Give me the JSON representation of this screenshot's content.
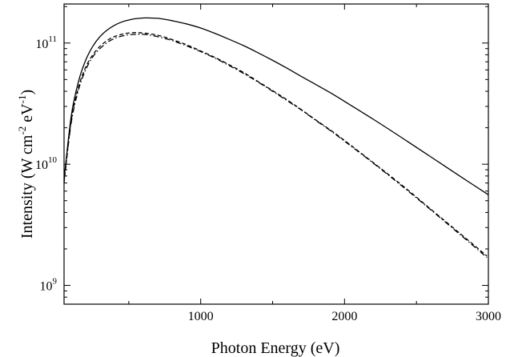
{
  "chart_data": {
    "type": "line",
    "xlabel": "Photon Energy (eV)",
    "ylabel": {
      "pre": "Intensity (W cm",
      "sup1": "-2",
      "mid": " eV",
      "sup2": "-1",
      "post": ")"
    },
    "xlim": [
      50,
      3000
    ],
    "ylim": [
      700000000.0,
      210000000000.0
    ],
    "yscale": "log",
    "grid": false,
    "x_ticks": [
      {
        "value": 1000,
        "label": "1000"
      },
      {
        "value": 2000,
        "label": "2000"
      },
      {
        "value": 3000,
        "label": "3000"
      }
    ],
    "y_ticks": [
      {
        "value": 1000000000.0,
        "base": "10",
        "exp": "9"
      },
      {
        "value": 10000000000.0,
        "base": "10",
        "exp": "10"
      },
      {
        "value": 100000000000.0,
        "base": "10",
        "exp": "11"
      }
    ],
    "series": [
      {
        "style": "solid",
        "color": "#000000",
        "x": [
          50,
          100,
          150,
          200,
          250,
          300,
          350,
          400,
          450,
          500,
          550,
          600,
          650,
          700,
          750,
          800,
          900,
          1000,
          1100,
          1200,
          1300,
          1400,
          1500,
          1600,
          1700,
          1800,
          1900,
          2000,
          2200,
          2400,
          2600,
          2800,
          3000
        ],
        "y": [
          7500000000.0,
          25000000000.0,
          48000000000.0,
          72000000000.0,
          94000000000.0,
          113000000000.0,
          128000000000.0,
          140000000000.0,
          149000000000.0,
          155000000000.0,
          159000000000.0,
          161000000000.0,
          161000000000.0,
          160000000000.0,
          157000000000.0,
          153000000000.0,
          144000000000.0,
          133000000000.0,
          120000000000.0,
          107000000000.0,
          95000000000.0,
          83000000000.0,
          72000000000.0,
          62000000000.0,
          53000000000.0,
          45500000000.0,
          39000000000.0,
          33000000000.0,
          23500000000.0,
          16500000000.0,
          11500000000.0,
          8000000000.0,
          5600000000.0
        ]
      },
      {
        "style": "dash-dot",
        "color": "#000000",
        "x": [
          50,
          100,
          150,
          200,
          250,
          300,
          350,
          400,
          450,
          500,
          550,
          600,
          650,
          700,
          750,
          800,
          900,
          1000,
          1100,
          1200,
          1300,
          1400,
          1500,
          1600,
          1700,
          1800,
          1900,
          2000,
          2200,
          2400,
          2600,
          2800,
          2990
        ],
        "y": [
          7200000000.0,
          22000000000.0,
          41000000000.0,
          60000000000.0,
          77000000000.0,
          90000000000.0,
          101000000000.0,
          109000000000.0,
          114000000000.0,
          117000000000.0,
          118000000000.0,
          118000000000.0,
          116000000000.0,
          113000000000.0,
          109000000000.0,
          105000000000.0,
          95000000000.0,
          85000000000.0,
          75000000000.0,
          65000000000.0,
          56000000000.0,
          47500000000.0,
          40000000000.0,
          33500000000.0,
          28000000000.0,
          23000000000.0,
          19000000000.0,
          15500000000.0,
          10200000000.0,
          6600000000.0,
          4200000000.0,
          2650000000.0,
          1700000000.0
        ]
      },
      {
        "style": "dash",
        "color": "#000000",
        "x": [
          50,
          100,
          150,
          200,
          250,
          300,
          350,
          400,
          450,
          500,
          550,
          600,
          650,
          700,
          750,
          800,
          900,
          1000,
          1100,
          1200,
          1300,
          1400,
          1500,
          1600,
          1700,
          1800,
          1900,
          2000,
          2200,
          2400,
          2600,
          2800,
          2990
        ],
        "y": [
          7000000000.0,
          23000000000.0,
          43000000000.0,
          63000000000.0,
          80000000000.0,
          94000000000.0,
          105000000000.0,
          113000000000.0,
          118000000000.0,
          121000000000.0,
          122000000000.0,
          121000000000.0,
          119000000000.0,
          116000000000.0,
          112000000000.0,
          107000000000.0,
          97000000000.0,
          86000000000.0,
          76000000000.0,
          66000000000.0,
          57000000000.0,
          48000000000.0,
          40500000000.0,
          34000000000.0,
          28200000000.0,
          23200000000.0,
          19200000000.0,
          15700000000.0,
          10300000000.0,
          6700000000.0,
          4250000000.0,
          2700000000.0,
          1750000000.0
        ]
      }
    ]
  }
}
